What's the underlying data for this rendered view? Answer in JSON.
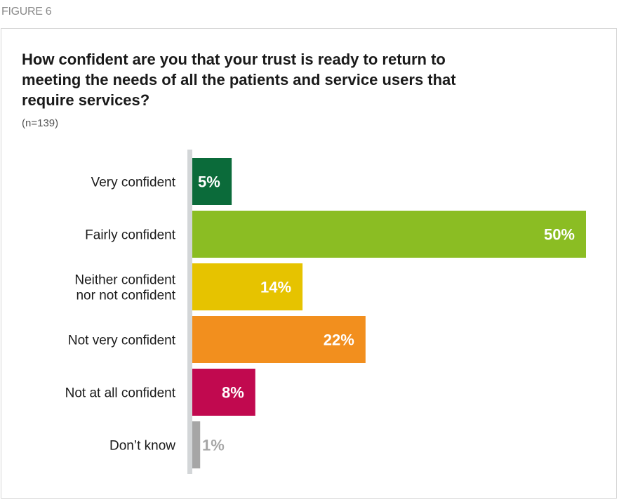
{
  "figure_label": "FIGURE 6",
  "chart_data": {
    "type": "bar",
    "orientation": "horizontal",
    "title": "How confident are you that your trust is ready to return to meeting the needs of all the patients and service users that require services?",
    "subtitle": "(n=139)",
    "categories": [
      "Very confident",
      "Fairly confident",
      "Neither confident nor not confident",
      "Not very confident",
      "Not at all confident",
      "Don’t know"
    ],
    "category_lines": [
      [
        "Very confident"
      ],
      [
        "Fairly confident"
      ],
      [
        "Neither confident",
        "nor not confident"
      ],
      [
        "Not very confident"
      ],
      [
        "Not at all confident"
      ],
      [
        "Don’t know"
      ]
    ],
    "values": [
      5,
      50,
      14,
      22,
      8,
      1
    ],
    "value_labels": [
      "5%",
      "50%",
      "14%",
      "22%",
      "8%",
      "1%"
    ],
    "colors": [
      "#0b6b3a",
      "#8bbd23",
      "#e6c300",
      "#f28f1e",
      "#c1094f",
      "#a6a6a6"
    ],
    "value_label_colors": [
      "#ffffff",
      "#ffffff",
      "#ffffff",
      "#ffffff",
      "#ffffff",
      "#a6a6a6"
    ],
    "xlim": [
      0,
      50
    ],
    "unit": "%",
    "grid": false,
    "legend": "none"
  }
}
